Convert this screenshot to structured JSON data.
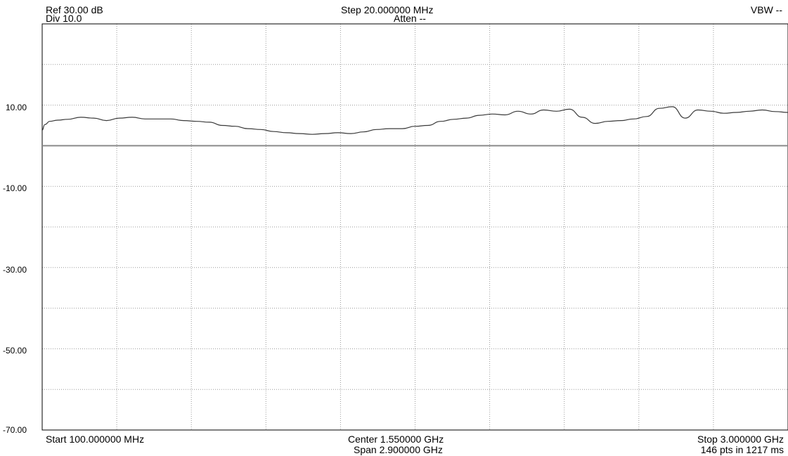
{
  "header": {
    "ref": "Ref 30.00 dB",
    "div": "Div 10.0",
    "step": "Step 20.000000 MHz",
    "atten": "Atten --",
    "vbw": "VBW --"
  },
  "footer": {
    "start": "Start 100.000000 MHz",
    "center": "Center 1.550000 GHz",
    "span": "Span 2.900000 GHz",
    "stop": "Stop 3.000000 GHz",
    "points": "146 pts in 1217 ms"
  },
  "chart_data": {
    "type": "line",
    "title": "",
    "xlabel": "",
    "ylabel": "",
    "xlim": [
      100,
      3000
    ],
    "ylim": [
      -70,
      30
    ],
    "grid": true,
    "ytick_labels": [
      "10.00",
      "-10.00",
      "-30.00",
      "-50.00",
      "-70.00"
    ],
    "ytick_values": [
      10,
      -10,
      -30,
      -50,
      -70
    ],
    "reference_line": 0,
    "series": [
      {
        "x": [
          100,
          110,
          130,
          160,
          200,
          250,
          300,
          350,
          400,
          450,
          500,
          550,
          600,
          650,
          700,
          750,
          800,
          850,
          900,
          950,
          1000,
          1050,
          1100,
          1150,
          1200,
          1250,
          1300,
          1350,
          1400,
          1450,
          1500,
          1550,
          1600,
          1650,
          1700,
          1750,
          1800,
          1850,
          1900,
          1950,
          2000,
          2050,
          2100,
          2150,
          2200,
          2250,
          2300,
          2350,
          2400,
          2450,
          2500,
          2550,
          2600,
          2650,
          2700,
          2750,
          2800,
          2850,
          2900,
          2950,
          3000
        ],
        "values": [
          3.8,
          5.2,
          6.0,
          6.3,
          6.5,
          7.0,
          6.8,
          6.2,
          6.8,
          7.0,
          6.6,
          6.6,
          6.6,
          6.2,
          6.0,
          5.8,
          5.0,
          4.8,
          4.2,
          4.0,
          3.5,
          3.2,
          3.0,
          2.8,
          3.0,
          3.2,
          3.0,
          3.4,
          4.0,
          4.2,
          4.2,
          4.8,
          5.0,
          6.0,
          6.5,
          6.8,
          7.5,
          7.8,
          7.6,
          8.5,
          7.8,
          8.8,
          8.5,
          9.0,
          7.0,
          5.5,
          6.0,
          6.2,
          6.6,
          7.2,
          9.2,
          9.6,
          6.8,
          8.8,
          8.5,
          8.0,
          8.2,
          8.5,
          8.8,
          8.4,
          8.2
        ]
      }
    ]
  }
}
